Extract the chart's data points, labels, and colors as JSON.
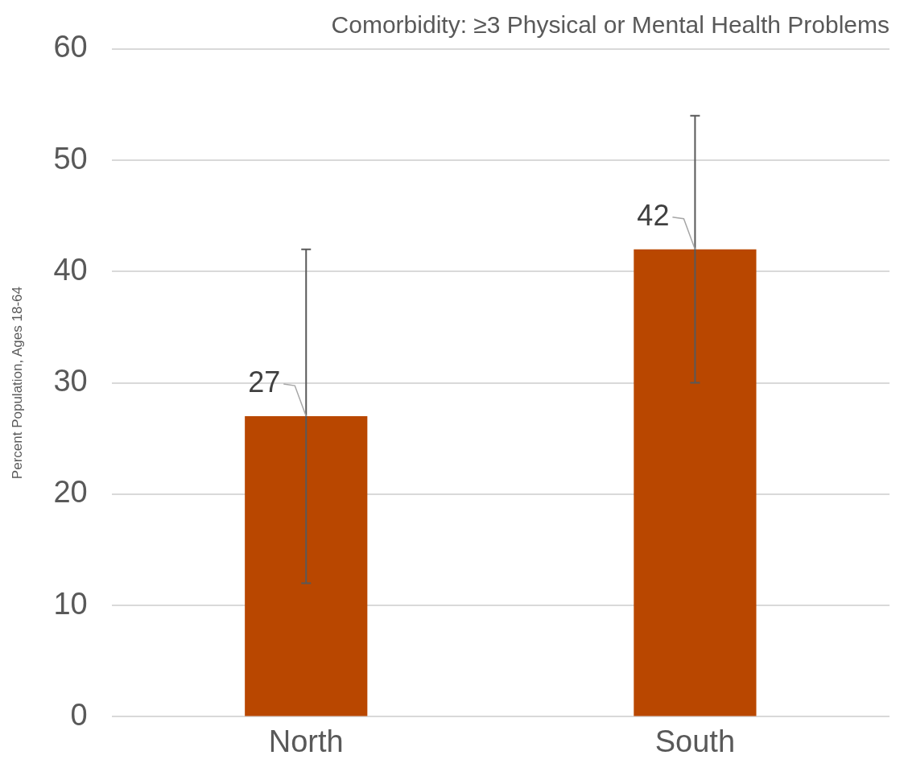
{
  "chart_data": {
    "type": "bar",
    "title": "Comorbidity: ≥3 Physical or Mental Health Problems",
    "ylabel": "Percent Population, Ages 18-64",
    "categories": [
      "North",
      "South"
    ],
    "values": [
      27,
      42
    ],
    "errors": [
      [
        12,
        42
      ],
      [
        30,
        54
      ]
    ],
    "color": "#b94700",
    "ylim": [
      0,
      60
    ],
    "yticks": [
      0,
      10,
      20,
      30,
      40,
      50,
      60
    ],
    "grid": "y",
    "data_labels": true,
    "legend": false
  }
}
